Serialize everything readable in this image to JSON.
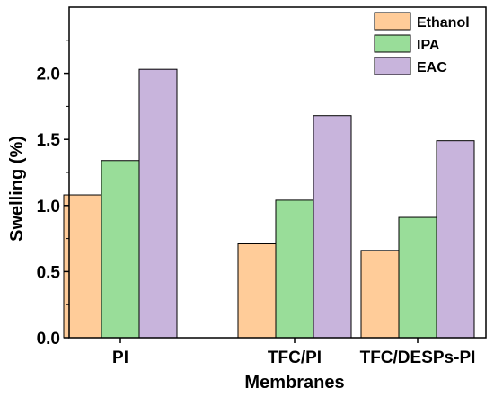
{
  "chart_data": {
    "type": "bar",
    "title": "",
    "xlabel": "Membranes",
    "ylabel": "Swelling (%)",
    "categories": [
      "PI",
      "TFC/PI",
      "TFC/DESPs-PI"
    ],
    "series": [
      {
        "name": "Ethanol",
        "color": "#FFCC99",
        "values": [
          1.08,
          0.71,
          0.66
        ]
      },
      {
        "name": "IPA",
        "color": "#99DD99",
        "values": [
          1.34,
          1.04,
          0.91
        ]
      },
      {
        "name": "EAC",
        "color": "#C8B4DC",
        "values": [
          2.03,
          1.68,
          1.49
        ]
      }
    ],
    "ylim": [
      0,
      2.5
    ],
    "yticks": [
      "0.0",
      "0.5",
      "1.0",
      "1.5",
      "2.0"
    ],
    "grid": false,
    "legend_position": "top-right"
  }
}
